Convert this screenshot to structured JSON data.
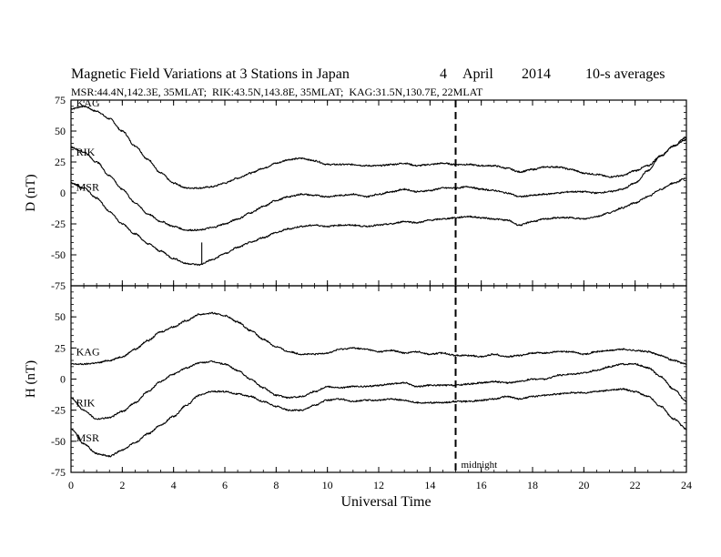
{
  "title": "Magnetic Field Variations at 3 Stations in Japan",
  "date_day": "4",
  "date_month": "April",
  "date_year": "2014",
  "averaging": "10-s averages",
  "station_info": "MSR:44.4N,142.3E, 35MLAT;  RIK:43.5N,143.8E, 35MLAT;  KAG:31.5N,130.7E, 22MLAT",
  "xlabel": "Universal Time",
  "midnight_label": "midnight",
  "chart_data": [
    {
      "type": "line",
      "panel": "D",
      "ylabel": "D (nT)",
      "xlim": [
        0,
        24
      ],
      "ylim": [
        -75,
        75
      ],
      "xticks": [
        0,
        2,
        4,
        6,
        8,
        10,
        12,
        14,
        16,
        18,
        20,
        22,
        24
      ],
      "yticks": [
        -75,
        -50,
        -25,
        0,
        25,
        50,
        75
      ],
      "vline_x": 15,
      "series": [
        {
          "name": "KAG",
          "x": [
            0,
            0.5,
            1,
            1.5,
            2,
            2.5,
            3,
            3.5,
            4,
            4.5,
            5,
            5.5,
            6,
            6.5,
            7,
            7.5,
            8,
            8.5,
            9,
            9.5,
            10,
            10.5,
            11,
            11.5,
            12,
            12.5,
            13,
            13.5,
            14,
            14.5,
            15,
            15.5,
            16,
            16.5,
            17,
            17.5,
            18,
            18.5,
            19,
            19.5,
            20,
            20.5,
            21,
            21.5,
            22,
            22.5,
            23,
            23.5,
            24
          ],
          "y": [
            68,
            70,
            66,
            60,
            50,
            38,
            27,
            16,
            8,
            4,
            4,
            5,
            8,
            12,
            16,
            20,
            24,
            27,
            28,
            26,
            23,
            23,
            23,
            22,
            22,
            23,
            24,
            22,
            23,
            24,
            23,
            23,
            22,
            22,
            20,
            17,
            19,
            21,
            21,
            19,
            16,
            15,
            13,
            14,
            18,
            22,
            30,
            38,
            45
          ]
        },
        {
          "name": "RIK",
          "x": [
            0,
            0.5,
            1,
            1.5,
            2,
            2.5,
            3,
            3.5,
            4,
            4.5,
            5,
            5.5,
            6,
            6.5,
            7,
            7.5,
            8,
            8.5,
            9,
            9.5,
            10,
            10.5,
            11,
            11.5,
            12,
            12.5,
            13,
            13.5,
            14,
            14.5,
            15,
            15.5,
            16,
            16.5,
            17,
            17.5,
            18,
            18.5,
            19,
            19.5,
            20,
            20.5,
            21,
            21.5,
            22,
            22.5,
            23,
            23.5,
            24
          ],
          "y": [
            37,
            33,
            25,
            14,
            3,
            -8,
            -17,
            -23,
            -27,
            -30,
            -30,
            -28,
            -25,
            -21,
            -16,
            -11,
            -6,
            -3,
            -1,
            -2,
            -3,
            -2,
            -1,
            -3,
            -1,
            1,
            3,
            1,
            2,
            4,
            4,
            5,
            3,
            2,
            0,
            -3,
            -2,
            -1,
            0,
            1,
            1,
            0,
            1,
            3,
            8,
            18,
            30,
            38,
            43
          ]
        },
        {
          "name": "MSR",
          "x": [
            0,
            0.5,
            1,
            1.5,
            2,
            2.5,
            3,
            3.5,
            4,
            4.5,
            5,
            5.5,
            6,
            6.5,
            7,
            7.5,
            8,
            8.5,
            9,
            9.5,
            10,
            10.5,
            11,
            11.5,
            12,
            12.5,
            13,
            13.5,
            14,
            14.5,
            15,
            15.5,
            16,
            16.5,
            17,
            17.5,
            18,
            18.5,
            19,
            19.5,
            20,
            20.5,
            21,
            21.5,
            22,
            22.5,
            23,
            23.5,
            24
          ],
          "y": [
            8,
            4,
            -4,
            -15,
            -25,
            -33,
            -41,
            -47,
            -53,
            -57,
            -58,
            -54,
            -49,
            -44,
            -40,
            -36,
            -32,
            -29,
            -27,
            -26,
            -27,
            -26,
            -26,
            -27,
            -26,
            -25,
            -23,
            -24,
            -22,
            -21,
            -20,
            -19,
            -20,
            -21,
            -22,
            -26,
            -23,
            -21,
            -20,
            -20,
            -21,
            -19,
            -16,
            -12,
            -8,
            -3,
            3,
            8,
            12
          ]
        }
      ]
    },
    {
      "type": "line",
      "panel": "H",
      "ylabel": "H (nT)",
      "xlim": [
        0,
        24
      ],
      "ylim": [
        -75,
        75
      ],
      "xticks": [
        0,
        2,
        4,
        6,
        8,
        10,
        12,
        14,
        16,
        18,
        20,
        22,
        24
      ],
      "yticks": [
        -75,
        -50,
        -25,
        0,
        25,
        50,
        75
      ],
      "vline_x": 15,
      "series": [
        {
          "name": "KAG",
          "x": [
            0,
            0.5,
            1,
            1.5,
            2,
            2.5,
            3,
            3.5,
            4,
            4.5,
            5,
            5.5,
            6,
            6.5,
            7,
            7.5,
            8,
            8.5,
            9,
            9.5,
            10,
            10.5,
            11,
            11.5,
            12,
            12.5,
            13,
            13.5,
            14,
            14.5,
            15,
            15.5,
            16,
            16.5,
            17,
            17.5,
            18,
            18.5,
            19,
            19.5,
            20,
            20.5,
            21,
            21.5,
            22,
            22.5,
            23,
            23.5,
            24
          ],
          "y": [
            12,
            12,
            13,
            15,
            18,
            24,
            31,
            38,
            42,
            47,
            52,
            53,
            51,
            46,
            39,
            32,
            26,
            22,
            20,
            20,
            21,
            24,
            25,
            24,
            22,
            23,
            21,
            22,
            20,
            21,
            19,
            19,
            18,
            20,
            18,
            19,
            21,
            21,
            22,
            22,
            20,
            22,
            23,
            24,
            23,
            22,
            19,
            15,
            12
          ]
        },
        {
          "name": "RIK",
          "x": [
            0,
            0.5,
            1,
            1.5,
            2,
            2.5,
            3,
            3.5,
            4,
            4.5,
            5,
            5.5,
            6,
            6.5,
            7,
            7.5,
            8,
            8.5,
            9,
            9.5,
            10,
            10.5,
            11,
            11.5,
            12,
            12.5,
            13,
            13.5,
            14,
            14.5,
            15,
            15.5,
            16,
            16.5,
            17,
            17.5,
            18,
            18.5,
            19,
            19.5,
            20,
            20.5,
            21,
            21.5,
            22,
            22.5,
            23,
            23.5,
            24
          ],
          "y": [
            -15,
            -25,
            -32,
            -31,
            -26,
            -19,
            -10,
            -2,
            4,
            9,
            13,
            14,
            12,
            7,
            0,
            -7,
            -13,
            -15,
            -14,
            -10,
            -6,
            -7,
            -6,
            -6,
            -5,
            -4,
            -3,
            -6,
            -5,
            -5,
            -5,
            -4,
            -3,
            -2,
            -3,
            -2,
            0,
            0,
            3,
            4,
            5,
            7,
            10,
            12,
            12,
            9,
            2,
            -8,
            -18
          ]
        },
        {
          "name": "MSR",
          "x": [
            0,
            0.5,
            1,
            1.5,
            2,
            2.5,
            3,
            3.5,
            4,
            4.5,
            5,
            5.5,
            6,
            6.5,
            7,
            7.5,
            8,
            8.5,
            9,
            9.5,
            10,
            10.5,
            11,
            11.5,
            12,
            12.5,
            13,
            13.5,
            14,
            14.5,
            15,
            15.5,
            16,
            16.5,
            17,
            17.5,
            18,
            18.5,
            19,
            19.5,
            20,
            20.5,
            21,
            21.5,
            22,
            22.5,
            23,
            23.5,
            24
          ],
          "y": [
            -40,
            -52,
            -60,
            -62,
            -57,
            -51,
            -44,
            -37,
            -30,
            -21,
            -13,
            -10,
            -10,
            -12,
            -14,
            -18,
            -22,
            -25,
            -25,
            -21,
            -17,
            -16,
            -18,
            -17,
            -17,
            -16,
            -17,
            -19,
            -19,
            -19,
            -18,
            -18,
            -17,
            -16,
            -14,
            -16,
            -14,
            -13,
            -12,
            -11,
            -11,
            -10,
            -9,
            -8,
            -10,
            -14,
            -22,
            -32,
            -40
          ]
        }
      ]
    }
  ]
}
